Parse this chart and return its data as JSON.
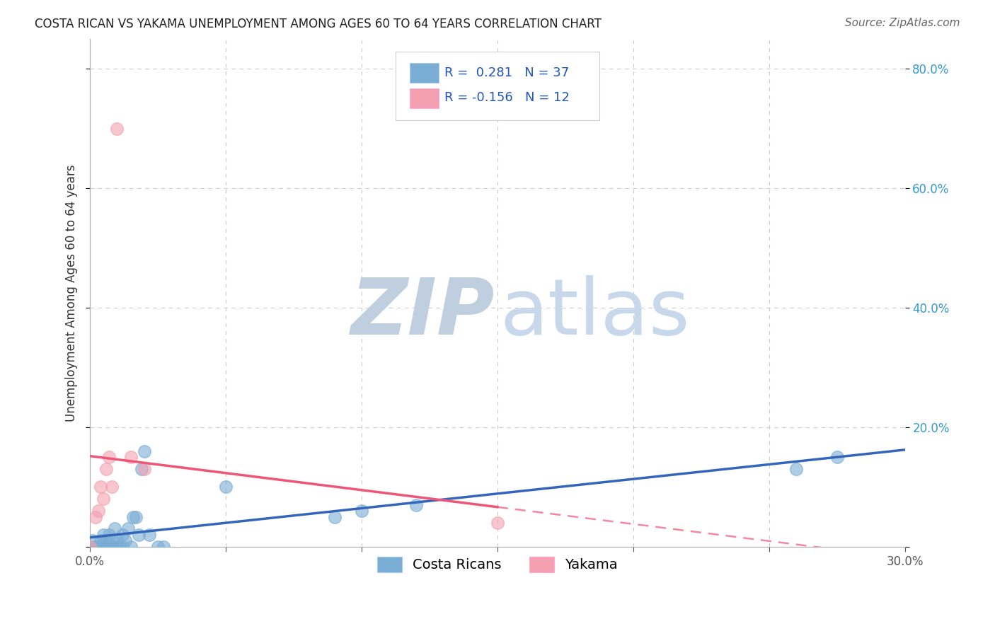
{
  "title": "COSTA RICAN VS YAKAMA UNEMPLOYMENT AMONG AGES 60 TO 64 YEARS CORRELATION CHART",
  "source": "Source: ZipAtlas.com",
  "ylabel": "Unemployment Among Ages 60 to 64 years",
  "xlim": [
    0.0,
    0.3
  ],
  "ylim": [
    0.0,
    0.85
  ],
  "xticks": [
    0.0,
    0.05,
    0.1,
    0.15,
    0.2,
    0.25,
    0.3
  ],
  "yticks": [
    0.0,
    0.2,
    0.4,
    0.6,
    0.8
  ],
  "grid_color": "#cccccc",
  "background_color": "#ffffff",
  "costa_rican_color": "#7aadd4",
  "yakama_color": "#f4a0b0",
  "costa_rican_line_color": "#3366bb",
  "yakama_line_color": "#ee5577",
  "costa_rican_R": 0.281,
  "costa_rican_N": 37,
  "yakama_R": -0.156,
  "yakama_N": 12,
  "costa_rican_points": [
    [
      0.0,
      0.0
    ],
    [
      0.001,
      0.01
    ],
    [
      0.002,
      0.0
    ],
    [
      0.003,
      0.0
    ],
    [
      0.004,
      0.0
    ],
    [
      0.004,
      0.01
    ],
    [
      0.005,
      0.0
    ],
    [
      0.005,
      0.02
    ],
    [
      0.006,
      0.0
    ],
    [
      0.006,
      0.01
    ],
    [
      0.007,
      0.0
    ],
    [
      0.007,
      0.02
    ],
    [
      0.008,
      0.0
    ],
    [
      0.008,
      0.01
    ],
    [
      0.009,
      0.03
    ],
    [
      0.01,
      0.0
    ],
    [
      0.01,
      0.01
    ],
    [
      0.011,
      0.0
    ],
    [
      0.012,
      0.0
    ],
    [
      0.012,
      0.02
    ],
    [
      0.013,
      0.01
    ],
    [
      0.014,
      0.03
    ],
    [
      0.015,
      0.0
    ],
    [
      0.016,
      0.05
    ],
    [
      0.017,
      0.05
    ],
    [
      0.018,
      0.02
    ],
    [
      0.019,
      0.13
    ],
    [
      0.02,
      0.16
    ],
    [
      0.022,
      0.02
    ],
    [
      0.025,
      0.0
    ],
    [
      0.027,
      0.0
    ],
    [
      0.05,
      0.1
    ],
    [
      0.09,
      0.05
    ],
    [
      0.1,
      0.06
    ],
    [
      0.12,
      0.07
    ],
    [
      0.26,
      0.13
    ],
    [
      0.275,
      0.15
    ]
  ],
  "yakama_points": [
    [
      0.0,
      0.0
    ],
    [
      0.002,
      0.05
    ],
    [
      0.003,
      0.06
    ],
    [
      0.004,
      0.1
    ],
    [
      0.005,
      0.08
    ],
    [
      0.006,
      0.13
    ],
    [
      0.007,
      0.15
    ],
    [
      0.008,
      0.1
    ],
    [
      0.01,
      0.7
    ],
    [
      0.015,
      0.15
    ],
    [
      0.02,
      0.13
    ],
    [
      0.15,
      0.04
    ]
  ],
  "watermark_zip_color": "#bfcfe0",
  "watermark_atlas_color": "#c8d8ea",
  "title_fontsize": 12,
  "source_fontsize": 11,
  "tick_fontsize": 12,
  "ylabel_fontsize": 12,
  "legend_fontsize": 13
}
